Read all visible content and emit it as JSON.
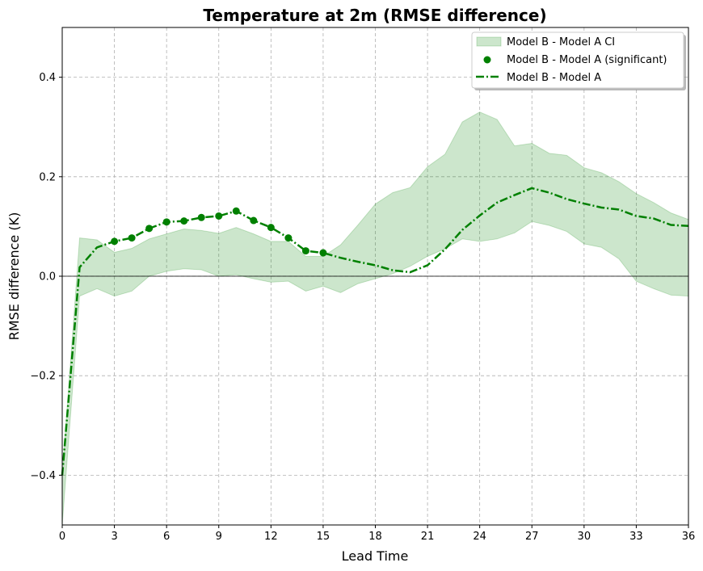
{
  "chart_data": {
    "type": "line",
    "title": "Temperature at 2m (RMSE difference)",
    "xlabel": "Lead Time",
    "ylabel": "RMSE difference (K)",
    "xlim": [
      0,
      36
    ],
    "ylim": [
      -0.5,
      0.5
    ],
    "xticks": [
      0,
      3,
      6,
      9,
      12,
      15,
      18,
      21,
      24,
      27,
      30,
      33,
      36
    ],
    "yticks": [
      -0.4,
      -0.2,
      0.0,
      0.2,
      0.4
    ],
    "ytick_labels": [
      "−0.4",
      "−0.2",
      "0.0",
      "0.2",
      "0.4"
    ],
    "grid": true,
    "legend_position": "top-right",
    "zero_line": 0,
    "colors": {
      "line": "#008000",
      "ci_fill": "#008000",
      "zero_line": "#000000",
      "grid": "#b0b0b0"
    },
    "x": [
      0,
      1,
      2,
      3,
      4,
      5,
      6,
      7,
      8,
      9,
      10,
      11,
      12,
      13,
      14,
      15,
      16,
      17,
      18,
      19,
      20,
      21,
      22,
      23,
      24,
      25,
      26,
      27,
      28,
      29,
      30,
      31,
      32,
      33,
      34,
      35,
      36
    ],
    "series": [
      {
        "name": "Model B - Model A CI",
        "style": "fill",
        "lower": [
          -0.5,
          -0.04,
          -0.025,
          -0.04,
          -0.03,
          0.0,
          0.01,
          0.015,
          0.013,
          0.0,
          0.003,
          -0.005,
          -0.012,
          -0.01,
          -0.03,
          -0.02,
          -0.033,
          -0.015,
          -0.005,
          0.005,
          0.02,
          0.04,
          0.055,
          0.075,
          0.07,
          0.075,
          0.087,
          0.11,
          0.102,
          0.09,
          0.065,
          0.058,
          0.035,
          -0.01,
          -0.025,
          -0.038,
          -0.04
        ],
        "upper": [
          -0.4,
          0.077,
          0.073,
          0.048,
          0.056,
          0.075,
          0.085,
          0.095,
          0.092,
          0.086,
          0.098,
          0.085,
          0.07,
          0.07,
          0.04,
          0.04,
          0.063,
          0.103,
          0.145,
          0.168,
          0.178,
          0.22,
          0.245,
          0.31,
          0.33,
          0.315,
          0.262,
          0.267,
          0.247,
          0.243,
          0.218,
          0.208,
          0.19,
          0.166,
          0.148,
          0.127,
          0.114
        ]
      },
      {
        "name": "Model B - Model A (significant)",
        "style": "scatter",
        "x": [
          3,
          4,
          5,
          6,
          7,
          8,
          9,
          10,
          11,
          12,
          13,
          14,
          15
        ],
        "values": [
          0.07,
          0.077,
          0.096,
          0.109,
          0.111,
          0.118,
          0.121,
          0.131,
          0.112,
          0.098,
          0.077,
          0.051,
          0.047
        ]
      },
      {
        "name": "Model B - Model A",
        "style": "dashdot",
        "values": [
          -0.4,
          0.018,
          0.058,
          0.07,
          0.077,
          0.096,
          0.109,
          0.111,
          0.118,
          0.121,
          0.131,
          0.112,
          0.098,
          0.077,
          0.051,
          0.047,
          0.037,
          0.029,
          0.022,
          0.012,
          0.008,
          0.022,
          0.054,
          0.093,
          0.122,
          0.148,
          0.163,
          0.177,
          0.168,
          0.155,
          0.146,
          0.138,
          0.134,
          0.121,
          0.116,
          0.103,
          0.101
        ]
      }
    ]
  }
}
